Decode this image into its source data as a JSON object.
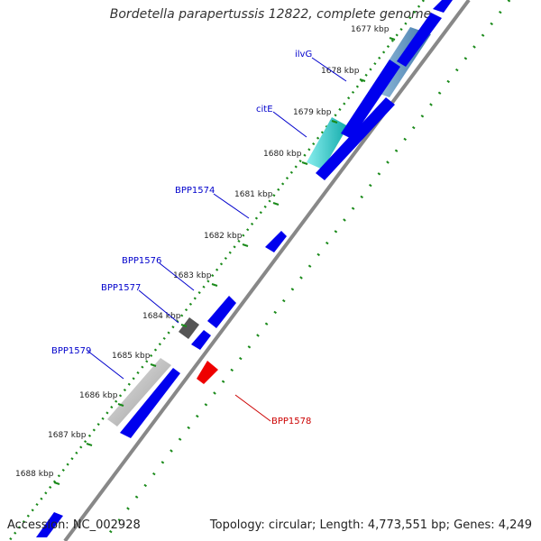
{
  "title": "Bordetella parapertussis 12822, complete genome",
  "footer": {
    "accession": "Accession: NC_002928",
    "summary": "Topology: circular; Length: 4,773,551 bp; Genes: 4,249"
  },
  "ticks": [
    "1677 kbp",
    "1678 kbp",
    "1679 kbp",
    "1680 kbp",
    "1681 kbp",
    "1682 kbp",
    "1683 kbp",
    "1684 kbp",
    "1685 kbp",
    "1686 kbp",
    "1687 kbp",
    "1688 kbp"
  ],
  "gene_labels": [
    {
      "name": "ilvG",
      "color": "#0000cc"
    },
    {
      "name": "citE",
      "color": "#0000cc"
    },
    {
      "name": "BPP1574",
      "color": "#0000cc"
    },
    {
      "name": "BPP1576",
      "color": "#0000cc"
    },
    {
      "name": "BPP1577",
      "color": "#0000cc"
    },
    {
      "name": "BPP1579",
      "color": "#0000cc"
    },
    {
      "name": "BPP1578",
      "color": "#cc0000"
    }
  ],
  "colors": {
    "forward_gene": "#0000ee",
    "reverse_gene": "#ee0000",
    "backbone": "#888888",
    "gc_dots": "#1a8a1a",
    "highlight_blue": "#4a86b8",
    "highlight_cyan": "#22cccc",
    "highlight_gray": "#bbbbbb",
    "dark_gray": "#555555"
  }
}
